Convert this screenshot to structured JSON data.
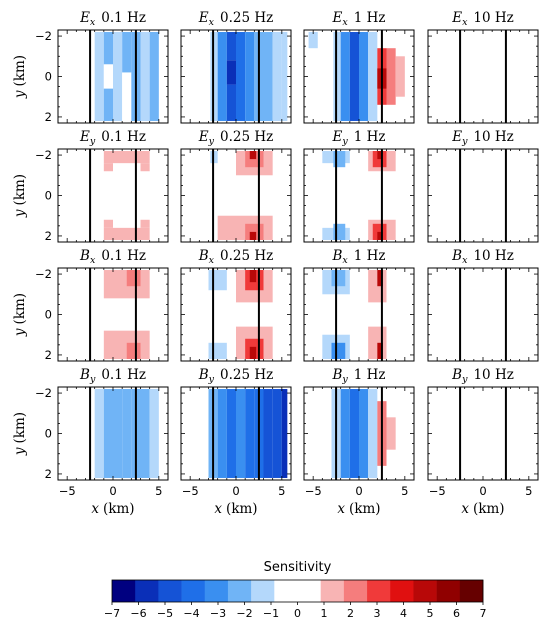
{
  "chart_data": {
    "type": "heatmap",
    "xlabel": "x (km)",
    "ylabel": "y (km)",
    "xlim": [
      -6,
      6
    ],
    "ylim": [
      -2.3,
      2.3
    ],
    "x_ticks": [
      "−5",
      "0",
      "5"
    ],
    "y_ticks": [
      "−2",
      "0",
      "2"
    ],
    "vertical_lines_x": [
      -2.5,
      2.5
    ],
    "colorbar": {
      "title": "Sensitivity",
      "min": -7,
      "max": 7,
      "ticks": [
        "−7",
        "−6",
        "−5",
        "−4",
        "−3",
        "−2",
        "−1",
        "0",
        "1",
        "2",
        "3",
        "4",
        "5",
        "6",
        "7"
      ],
      "colors": [
        "#000080",
        "#0a2fb8",
        "#1553d6",
        "#1f6fe8",
        "#3a8ff0",
        "#70b4f6",
        "#b4d8fb",
        "#ffffff",
        "#ffffff",
        "#f8b4b4",
        "#f57d7d",
        "#f03a3a",
        "#e01010",
        "#b80808",
        "#900000",
        "#660000"
      ]
    },
    "rows": [
      "E_x",
      "E_y",
      "B_x",
      "B_y"
    ],
    "row_labels": [
      {
        "base": "E",
        "sub": "x"
      },
      {
        "base": "E",
        "sub": "y"
      },
      {
        "base": "B",
        "sub": "x"
      },
      {
        "base": "B",
        "sub": "y"
      }
    ],
    "columns": [
      "0.1 Hz",
      "0.25 Hz",
      "1 Hz",
      "10 Hz"
    ],
    "panels": [
      {
        "row": 0,
        "col": 0,
        "title_base": "E",
        "title_sub": "x",
        "title_freq": "0.1 Hz",
        "cells": [
          {
            "x0": -2,
            "x1": -1,
            "y0": -2.2,
            "y1": 2.2,
            "v": -1.5
          },
          {
            "x0": -1,
            "x1": 0,
            "y0": -2.2,
            "y1": -0.6,
            "v": -2.0
          },
          {
            "x0": -1,
            "x1": 0,
            "y0": -0.6,
            "y1": 0.6,
            "v": 0.0
          },
          {
            "x0": -1,
            "x1": 0,
            "y0": 0.6,
            "y1": 2.2,
            "v": -2.0
          },
          {
            "x0": 0,
            "x1": 1,
            "y0": -2.2,
            "y1": 2.2,
            "v": -1.5
          },
          {
            "x0": 1,
            "x1": 2,
            "y0": -2.2,
            "y1": -0.2,
            "v": -2.0
          },
          {
            "x0": 1,
            "x1": 2,
            "y0": -0.2,
            "y1": 2.2,
            "v": 0.0
          },
          {
            "x0": 2,
            "x1": 3,
            "y0": -2.2,
            "y1": 2.2,
            "v": -2.0
          },
          {
            "x0": 3,
            "x1": 4,
            "y0": -2.2,
            "y1": 2.2,
            "v": -1.5
          },
          {
            "x0": 4,
            "x1": 5,
            "y0": -2.2,
            "y1": 2.2,
            "v": -2.0
          }
        ]
      },
      {
        "row": 0,
        "col": 1,
        "title_base": "E",
        "title_sub": "x",
        "title_freq": "0.25 Hz",
        "cells": [
          {
            "x0": -2.8,
            "x1": -2,
            "y0": -2.2,
            "y1": 2.2,
            "v": -1.5
          },
          {
            "x0": -2,
            "x1": -1,
            "y0": -2.2,
            "y1": 2.2,
            "v": -3.5
          },
          {
            "x0": -1,
            "x1": 0,
            "y0": -2.2,
            "y1": -0.8,
            "v": -4.5
          },
          {
            "x0": -1,
            "x1": 0,
            "y0": -0.8,
            "y1": 0.4,
            "v": -5.5
          },
          {
            "x0": -1,
            "x1": 0,
            "y0": 0.4,
            "y1": 2.2,
            "v": -4.5
          },
          {
            "x0": 0,
            "x1": 1,
            "y0": -2.2,
            "y1": 2.2,
            "v": -4.0
          },
          {
            "x0": 1,
            "x1": 2,
            "y0": -2.2,
            "y1": 2.2,
            "v": -3.5
          },
          {
            "x0": 2,
            "x1": 3,
            "y0": -2.2,
            "y1": 2.2,
            "v": -2.5
          },
          {
            "x0": 3,
            "x1": 4,
            "y0": -2.2,
            "y1": 2.2,
            "v": -2.5
          },
          {
            "x0": 4,
            "x1": 5,
            "y0": -2.2,
            "y1": 2.2,
            "v": -1.5
          },
          {
            "x0": 5,
            "x1": 5.6,
            "y0": -2.2,
            "y1": 2.2,
            "v": -1.5
          }
        ]
      },
      {
        "row": 0,
        "col": 2,
        "title_base": "E",
        "title_sub": "x",
        "title_freq": "1 Hz",
        "cells": [
          {
            "x0": -5.5,
            "x1": -4.5,
            "y0": -2.2,
            "y1": -1.4,
            "v": -1.5
          },
          {
            "x0": -2.8,
            "x1": -2,
            "y0": -2.2,
            "y1": 2.2,
            "v": -1.5
          },
          {
            "x0": -2,
            "x1": -1,
            "y0": -2.2,
            "y1": 2.2,
            "v": -3.5
          },
          {
            "x0": -1,
            "x1": 0,
            "y0": -2.2,
            "y1": 2.2,
            "v": -4.5
          },
          {
            "x0": 0,
            "x1": 1,
            "y0": -2.2,
            "y1": 2.2,
            "v": -3.5
          },
          {
            "x0": 1,
            "x1": 2,
            "y0": -2.2,
            "y1": 2.2,
            "v": -1.5
          },
          {
            "x0": 2,
            "x1": 3,
            "y0": -1.4,
            "y1": 1.4,
            "v": 3.0
          },
          {
            "x0": 2,
            "x1": 3,
            "y0": -0.4,
            "y1": 0.6,
            "v": 4.5
          },
          {
            "x0": 3,
            "x1": 4,
            "y0": -1.4,
            "y1": 1.4,
            "v": 2.0
          },
          {
            "x0": 4,
            "x1": 5,
            "y0": -1.0,
            "y1": 1.0,
            "v": 1.5
          }
        ]
      },
      {
        "row": 0,
        "col": 3,
        "title_base": "E",
        "title_sub": "x",
        "title_freq": "10 Hz",
        "cells": []
      },
      {
        "row": 1,
        "col": 0,
        "title_base": "E",
        "title_sub": "y",
        "title_freq": "0.1 Hz",
        "cells": [
          {
            "x0": -1,
            "x1": 4,
            "y0": -2.2,
            "y1": -1.6,
            "v": 1.5
          },
          {
            "x0": -1,
            "x1": 0,
            "y0": -1.6,
            "y1": -1.2,
            "v": 1.5
          },
          {
            "x0": 3,
            "x1": 4,
            "y0": -1.6,
            "y1": -1.2,
            "v": 1.5
          },
          {
            "x0": -1,
            "x1": 4,
            "y0": 1.6,
            "y1": 2.2,
            "v": 1.5
          },
          {
            "x0": -1,
            "x1": 0,
            "y0": 1.2,
            "y1": 1.6,
            "v": 1.5
          },
          {
            "x0": 3,
            "x1": 4,
            "y0": 1.2,
            "y1": 1.6,
            "v": 1.5
          }
        ]
      },
      {
        "row": 1,
        "col": 1,
        "title_base": "E",
        "title_sub": "y",
        "title_freq": "0.25 Hz",
        "cells": [
          {
            "x0": -2.8,
            "x1": -2,
            "y0": -2.2,
            "y1": -1.6,
            "v": -1.5
          },
          {
            "x0": 0,
            "x1": 4,
            "y0": -2.2,
            "y1": -1.0,
            "v": 1.5
          },
          {
            "x0": 1,
            "x1": 3,
            "y0": -2.2,
            "y1": -1.4,
            "v": 2.5
          },
          {
            "x0": 1.5,
            "x1": 2.2,
            "y0": -2.2,
            "y1": -1.8,
            "v": 5.0
          },
          {
            "x0": -2,
            "x1": 4,
            "y0": 1.0,
            "y1": 2.2,
            "v": 1.5
          },
          {
            "x0": 1,
            "x1": 3,
            "y0": 1.4,
            "y1": 2.2,
            "v": 2.5
          },
          {
            "x0": 1.5,
            "x1": 2.2,
            "y0": 1.8,
            "y1": 2.2,
            "v": 5.0
          }
        ]
      },
      {
        "row": 1,
        "col": 2,
        "title_base": "E",
        "title_sub": "y",
        "title_freq": "1 Hz",
        "cells": [
          {
            "x0": -4,
            "x1": -1,
            "y0": -2.2,
            "y1": -1.6,
            "v": -1.5
          },
          {
            "x0": -2.8,
            "x1": -1.5,
            "y0": -2.2,
            "y1": -1.4,
            "v": -2.5
          },
          {
            "x0": -4,
            "x1": -1,
            "y0": 1.6,
            "y1": 2.2,
            "v": -1.5
          },
          {
            "x0": -2.8,
            "x1": -1.5,
            "y0": 1.4,
            "y1": 2.2,
            "v": -2.5
          },
          {
            "x0": 1,
            "x1": 4,
            "y0": -2.2,
            "y1": -1.2,
            "v": 1.5
          },
          {
            "x0": 1.5,
            "x1": 3,
            "y0": -2.2,
            "y1": -1.4,
            "v": 3.0
          },
          {
            "x0": 2,
            "x1": 2.6,
            "y0": -2.2,
            "y1": -1.8,
            "v": 5.0
          },
          {
            "x0": 1,
            "x1": 4,
            "y0": 1.2,
            "y1": 2.2,
            "v": 1.5
          },
          {
            "x0": 1.5,
            "x1": 3,
            "y0": 1.4,
            "y1": 2.2,
            "v": 3.0
          },
          {
            "x0": 2,
            "x1": 2.6,
            "y0": 1.8,
            "y1": 2.2,
            "v": 5.0
          }
        ]
      },
      {
        "row": 1,
        "col": 3,
        "title_base": "E",
        "title_sub": "y",
        "title_freq": "10 Hz",
        "cells": []
      },
      {
        "row": 2,
        "col": 0,
        "title_base": "B",
        "title_sub": "x",
        "title_freq": "0.1 Hz",
        "cells": [
          {
            "x0": -1,
            "x1": 4,
            "y0": -2.2,
            "y1": -0.8,
            "v": 1.5
          },
          {
            "x0": 1.5,
            "x1": 3,
            "y0": -2.2,
            "y1": -1.4,
            "v": 2.5
          },
          {
            "x0": -1,
            "x1": 4,
            "y0": 0.8,
            "y1": 2.2,
            "v": 1.5
          },
          {
            "x0": 1.5,
            "x1": 3,
            "y0": 1.4,
            "y1": 2.2,
            "v": 2.5
          }
        ]
      },
      {
        "row": 2,
        "col": 1,
        "title_base": "B",
        "title_sub": "x",
        "title_freq": "0.25 Hz",
        "cells": [
          {
            "x0": -3,
            "x1": -1,
            "y0": -2.2,
            "y1": -1.2,
            "v": -1.5
          },
          {
            "x0": -3,
            "x1": -1,
            "y0": 1.4,
            "y1": 2.2,
            "v": -1.5
          },
          {
            "x0": 0,
            "x1": 4,
            "y0": -2.2,
            "y1": -0.6,
            "v": 1.5
          },
          {
            "x0": 1,
            "x1": 3,
            "y0": -2.2,
            "y1": -1.2,
            "v": 3.0
          },
          {
            "x0": 1.5,
            "x1": 2.2,
            "y0": -2.2,
            "y1": -1.6,
            "v": 4.5
          },
          {
            "x0": 0,
            "x1": 4,
            "y0": 0.6,
            "y1": 2.2,
            "v": 1.5
          },
          {
            "x0": 1,
            "x1": 3,
            "y0": 1.2,
            "y1": 2.2,
            "v": 3.0
          },
          {
            "x0": 1.5,
            "x1": 2.2,
            "y0": 1.6,
            "y1": 2.2,
            "v": 5.0
          }
        ]
      },
      {
        "row": 2,
        "col": 2,
        "title_base": "B",
        "title_sub": "x",
        "title_freq": "1 Hz",
        "cells": [
          {
            "x0": -4,
            "x1": -1,
            "y0": -2.2,
            "y1": -1.0,
            "v": -1.5
          },
          {
            "x0": -3,
            "x1": -1.5,
            "y0": -2.2,
            "y1": -1.4,
            "v": -2.5
          },
          {
            "x0": -4,
            "x1": -1,
            "y0": 1.0,
            "y1": 2.2,
            "v": -1.5
          },
          {
            "x0": -3,
            "x1": -1.5,
            "y0": 1.4,
            "y1": 2.2,
            "v": -3.0
          },
          {
            "x0": 1,
            "x1": 3,
            "y0": -2.2,
            "y1": -0.6,
            "v": 1.5
          },
          {
            "x0": 2,
            "x1": 2.6,
            "y0": -2.2,
            "y1": -1.4,
            "v": 4.5
          },
          {
            "x0": 1,
            "x1": 3,
            "y0": 0.6,
            "y1": 2.2,
            "v": 1.5
          },
          {
            "x0": 2,
            "x1": 2.6,
            "y0": 1.4,
            "y1": 2.2,
            "v": 4.5
          }
        ]
      },
      {
        "row": 2,
        "col": 3,
        "title_base": "B",
        "title_sub": "x",
        "title_freq": "10 Hz",
        "cells": []
      },
      {
        "row": 3,
        "col": 0,
        "title_base": "B",
        "title_sub": "y",
        "title_freq": "0.1 Hz",
        "cells": [
          {
            "x0": -2,
            "x1": -1,
            "y0": -2.2,
            "y1": 2.2,
            "v": -1.5
          },
          {
            "x0": -1,
            "x1": 0,
            "y0": -2.2,
            "y1": 2.2,
            "v": -2.5
          },
          {
            "x0": 0,
            "x1": 1,
            "y0": -2.2,
            "y1": 2.2,
            "v": -2.0
          },
          {
            "x0": 1,
            "x1": 2,
            "y0": -2.2,
            "y1": 2.2,
            "v": -2.5
          },
          {
            "x0": 2,
            "x1": 3,
            "y0": -2.2,
            "y1": 2.2,
            "v": -2.0
          },
          {
            "x0": 3,
            "x1": 4,
            "y0": -2.2,
            "y1": 2.2,
            "v": -2.5
          },
          {
            "x0": 4,
            "x1": 5,
            "y0": -2.2,
            "y1": 2.2,
            "v": -1.5
          }
        ]
      },
      {
        "row": 3,
        "col": 1,
        "title_base": "B",
        "title_sub": "y",
        "title_freq": "0.25 Hz",
        "cells": [
          {
            "x0": -3,
            "x1": -2,
            "y0": -2.2,
            "y1": 2.2,
            "v": -2.5
          },
          {
            "x0": -2,
            "x1": -1,
            "y0": -2.2,
            "y1": 2.2,
            "v": -3.5
          },
          {
            "x0": -1,
            "x1": 0,
            "y0": -2.2,
            "y1": 2.2,
            "v": -4.0
          },
          {
            "x0": 0,
            "x1": 1,
            "y0": -2.2,
            "y1": 2.2,
            "v": -3.0
          },
          {
            "x0": 1,
            "x1": 2,
            "y0": -2.2,
            "y1": 2.2,
            "v": -4.0
          },
          {
            "x0": 2,
            "x1": 3,
            "y0": -2.2,
            "y1": 2.2,
            "v": -4.0
          },
          {
            "x0": 3,
            "x1": 4,
            "y0": -2.2,
            "y1": 2.2,
            "v": -4.5
          },
          {
            "x0": 4,
            "x1": 5,
            "y0": -2.2,
            "y1": 2.2,
            "v": -5.0
          },
          {
            "x0": 5,
            "x1": 5.6,
            "y0": -2.2,
            "y1": 2.2,
            "v": -5.5
          }
        ]
      },
      {
        "row": 3,
        "col": 2,
        "title_base": "B",
        "title_sub": "y",
        "title_freq": "1 Hz",
        "cells": [
          {
            "x0": -3,
            "x1": -2,
            "y0": -2.2,
            "y1": 2.2,
            "v": -1.5
          },
          {
            "x0": -2,
            "x1": -1,
            "y0": -2.2,
            "y1": 2.2,
            "v": -3.5
          },
          {
            "x0": -1,
            "x1": 0,
            "y0": -2.2,
            "y1": 2.2,
            "v": -4.0
          },
          {
            "x0": 0,
            "x1": 1,
            "y0": -2.2,
            "y1": 2.2,
            "v": -3.0
          },
          {
            "x0": 1,
            "x1": 2,
            "y0": -2.2,
            "y1": 2.2,
            "v": -1.5
          },
          {
            "x0": 2,
            "x1": 3,
            "y0": -1.6,
            "y1": 1.6,
            "v": 2.5
          },
          {
            "x0": 3,
            "x1": 4,
            "y0": -0.8,
            "y1": 0.8,
            "v": 1.5
          }
        ]
      },
      {
        "row": 3,
        "col": 3,
        "title_base": "B",
        "title_sub": "y",
        "title_freq": "10 Hz",
        "cells": []
      }
    ]
  }
}
